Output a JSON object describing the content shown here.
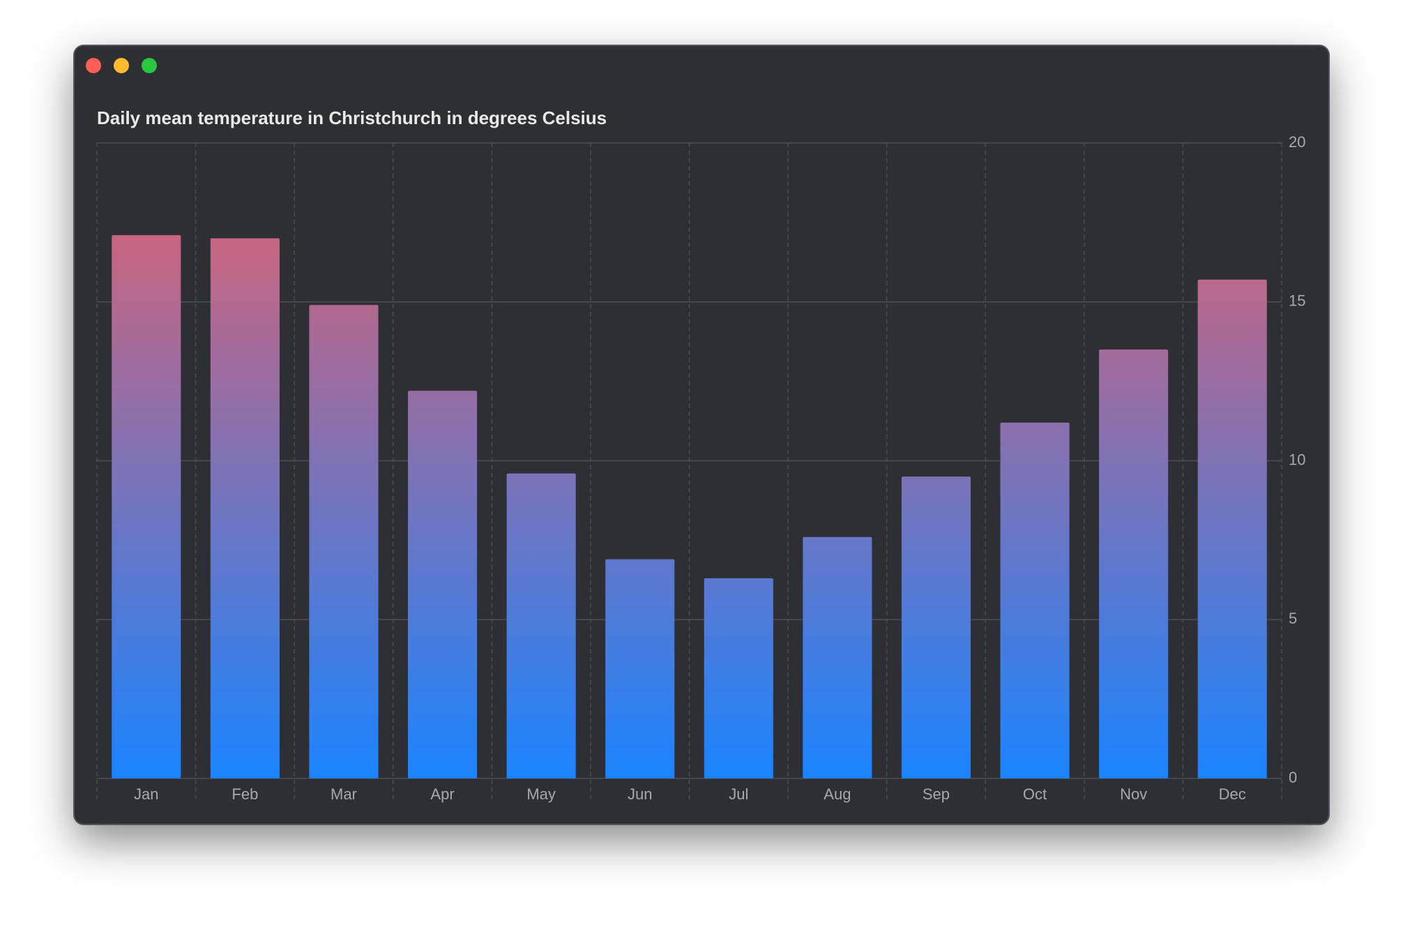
{
  "chart_data": {
    "type": "bar",
    "title": "Daily mean temperature in Christchurch in degrees Celsius",
    "categories": [
      "Jan",
      "Feb",
      "Mar",
      "Apr",
      "May",
      "Jun",
      "Jul",
      "Aug",
      "Sep",
      "Oct",
      "Nov",
      "Dec"
    ],
    "values": [
      17.1,
      17.0,
      14.9,
      12.2,
      9.6,
      6.9,
      6.3,
      7.6,
      9.5,
      11.2,
      13.5,
      15.7
    ],
    "color_gradient": [
      "#1a84ff",
      "#e6606a"
    ],
    "ylim": [
      0,
      20
    ],
    "yticks": [
      0,
      5,
      10,
      15,
      20
    ],
    "grid": true
  }
}
